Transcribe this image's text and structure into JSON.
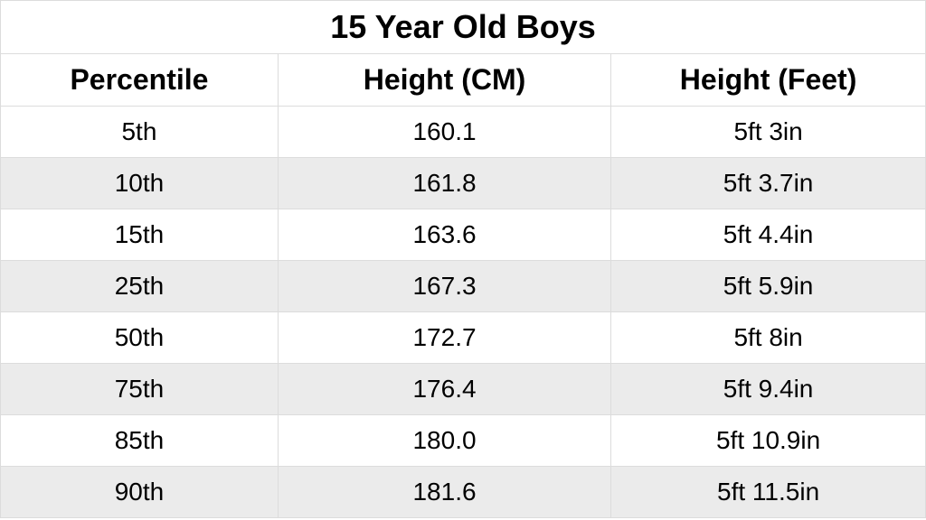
{
  "table": {
    "title": "15 Year Old Boys",
    "columns": [
      {
        "label": "Percentile",
        "key": "percentile"
      },
      {
        "label": "Height (CM)",
        "key": "height_cm"
      },
      {
        "label": "Height (Feet)",
        "key": "height_feet"
      }
    ],
    "rows": [
      {
        "percentile": "5th",
        "height_cm": "160.1",
        "height_feet": "5ft 3in"
      },
      {
        "percentile": "10th",
        "height_cm": "161.8",
        "height_feet": "5ft 3.7in"
      },
      {
        "percentile": "15th",
        "height_cm": "163.6",
        "height_feet": "5ft 4.4in"
      },
      {
        "percentile": "25th",
        "height_cm": "167.3",
        "height_feet": "5ft 5.9in"
      },
      {
        "percentile": "50th",
        "height_cm": "172.7",
        "height_feet": "5ft 8in"
      },
      {
        "percentile": "75th",
        "height_cm": "176.4",
        "height_feet": "5ft 9.4in"
      },
      {
        "percentile": "85th",
        "height_cm": "180.0",
        "height_feet": "5ft 10.9in"
      },
      {
        "percentile": "90th",
        "height_cm": "181.6",
        "height_feet": "5ft 11.5in"
      }
    ],
    "style": {
      "title_fontsize": 36,
      "header_fontsize": 32,
      "cell_fontsize": 28,
      "border_color": "#dcdcdc",
      "bg_odd": "#ffffff",
      "bg_even": "#ebebeb",
      "text_color": "#000000",
      "col_widths_pct": [
        30,
        36,
        34
      ]
    }
  }
}
